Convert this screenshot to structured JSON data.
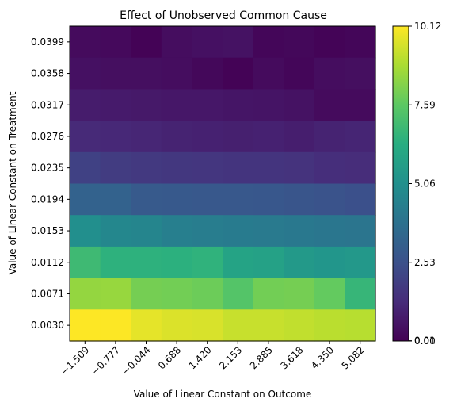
{
  "chart_data": {
    "type": "heatmap",
    "title": "Effect of Unobserved Common Cause",
    "xlabel": "Value of Linear Constant on Outcome",
    "ylabel": "Value of Linear Constant on Treatment",
    "x": [
      "−1.509",
      "−0.777",
      "−0.044",
      "0.688",
      "1.420",
      "2.153",
      "2.885",
      "3.618",
      "4.350",
      "5.082"
    ],
    "y": [
      "0.0399",
      "0.0358",
      "0.0317",
      "0.0276",
      "0.0235",
      "0.0194",
      "0.0153",
      "0.0112",
      "0.0071",
      "0.0030"
    ],
    "values": [
      [
        0.3,
        0.25,
        0.05,
        0.35,
        0.45,
        0.5,
        0.15,
        0.2,
        0.1,
        0.15
      ],
      [
        0.45,
        0.4,
        0.4,
        0.35,
        0.2,
        0.05,
        0.3,
        0.15,
        0.35,
        0.4
      ],
      [
        0.8,
        0.75,
        0.7,
        0.65,
        0.65,
        0.6,
        0.55,
        0.5,
        0.3,
        0.3
      ],
      [
        1.2,
        1.15,
        1.1,
        1.0,
        0.95,
        0.9,
        0.95,
        0.85,
        1.0,
        1.05
      ],
      [
        2.0,
        1.8,
        1.7,
        1.65,
        1.6,
        1.55,
        1.55,
        1.5,
        1.35,
        1.3
      ],
      [
        3.2,
        3.2,
        2.9,
        2.85,
        2.8,
        2.8,
        2.75,
        2.7,
        2.6,
        2.5
      ],
      [
        5.0,
        4.7,
        4.6,
        4.35,
        4.3,
        4.2,
        4.15,
        4.1,
        4.0,
        3.95
      ],
      [
        6.9,
        6.5,
        6.5,
        6.45,
        6.55,
        5.9,
        5.8,
        5.45,
        5.3,
        5.4
      ],
      [
        8.5,
        8.55,
        8.0,
        7.95,
        7.85,
        7.4,
        7.95,
        8.0,
        7.7,
        6.7
      ],
      [
        10.12,
        10.1,
        9.75,
        9.6,
        9.55,
        9.3,
        9.3,
        9.2,
        9.1,
        9.05
      ]
    ],
    "colorbar": {
      "min": 0.0,
      "max": 10.12,
      "ticks": [
        0.0,
        0.01,
        2.53,
        5.06,
        7.59,
        10.12
      ],
      "tick_labels": [
        "0.00",
        "0.01",
        "2.53",
        "5.06",
        "7.59",
        "10.12"
      ]
    },
    "colormap": "viridis",
    "grid": false
  }
}
